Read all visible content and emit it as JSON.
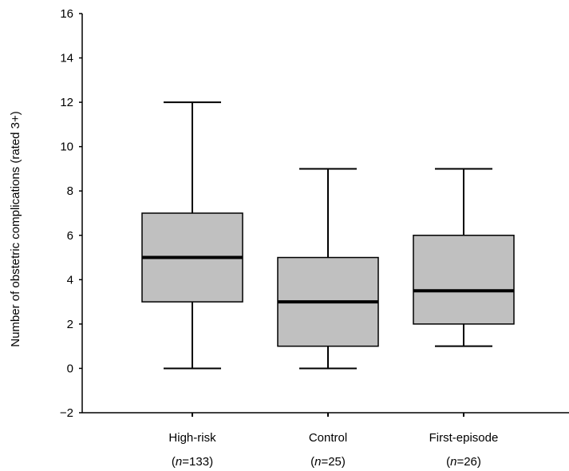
{
  "chart_data": {
    "type": "box",
    "ylabel": "Number of obstetric complications (rated 3+)",
    "xlabel": "",
    "ylim": [
      -2,
      16
    ],
    "yticks": [
      -2,
      0,
      2,
      4,
      6,
      8,
      10,
      12,
      14,
      16
    ],
    "ytick_labels": [
      "−2",
      "0",
      "2",
      "4",
      "6",
      "8",
      "10",
      "12",
      "14",
      "16"
    ],
    "grid": false,
    "groups": [
      {
        "category": "High-risk",
        "n_label": "=133",
        "min": 0,
        "q1": 3,
        "median": 5,
        "q3": 7,
        "max": 12
      },
      {
        "category": "Control",
        "n_label": "=25",
        "min": 0,
        "q1": 1,
        "median": 3,
        "q3": 5,
        "max": 9
      },
      {
        "category": "First-episode",
        "n_label": "=26",
        "min": 1,
        "q1": 2,
        "median": 3.5,
        "q3": 6,
        "max": 9
      }
    ],
    "colors": {
      "box_fill": "#c0c0c0",
      "stroke": "#000000"
    }
  }
}
